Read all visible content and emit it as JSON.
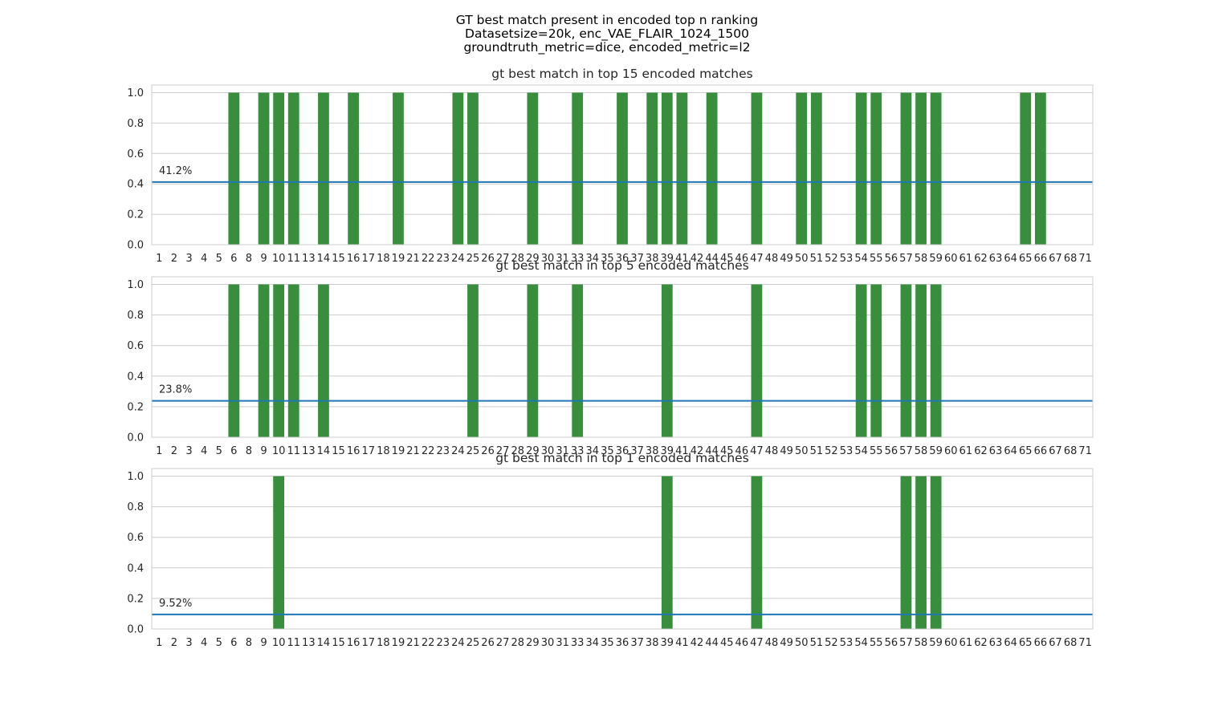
{
  "figure": {
    "title_lines": [
      "GT best match present in encoded top n ranking",
      "Datasetsize=20k, enc_VAE_FLAIR_1024_1500",
      "groundtruth_metric=dice, encoded_metric=l2"
    ]
  },
  "colors": {
    "bar": "#388e3c",
    "mean_line": "#1f77b4",
    "grid": "#cccccc",
    "spine": "#cccccc"
  },
  "chart_data": [
    {
      "type": "bar",
      "title": "gt best match in top 15 encoded matches",
      "categories": [
        "1",
        "2",
        "3",
        "4",
        "5",
        "6",
        "8",
        "9",
        "10",
        "11",
        "13",
        "14",
        "15",
        "16",
        "17",
        "18",
        "19",
        "21",
        "22",
        "23",
        "24",
        "25",
        "26",
        "27",
        "28",
        "29",
        "30",
        "31",
        "33",
        "34",
        "35",
        "36",
        "37",
        "38",
        "39",
        "41",
        "42",
        "44",
        "45",
        "46",
        "47",
        "48",
        "49",
        "50",
        "51",
        "52",
        "53",
        "54",
        "55",
        "56",
        "57",
        "58",
        "59",
        "60",
        "61",
        "62",
        "63",
        "64",
        "65",
        "66",
        "67",
        "68",
        "71"
      ],
      "values": [
        0,
        0,
        0,
        0,
        0,
        1,
        0,
        1,
        1,
        1,
        0,
        1,
        0,
        1,
        0,
        0,
        1,
        0,
        0,
        0,
        1,
        1,
        0,
        0,
        0,
        1,
        0,
        0,
        1,
        0,
        0,
        1,
        0,
        1,
        1,
        1,
        0,
        1,
        0,
        0,
        1,
        0,
        0,
        1,
        1,
        0,
        0,
        1,
        1,
        0,
        1,
        1,
        1,
        0,
        0,
        0,
        0,
        0,
        1,
        1,
        0,
        0,
        0
      ],
      "ylim": [
        0,
        1.05
      ],
      "yticks": [
        0.0,
        0.2,
        0.4,
        0.6,
        0.8,
        1.0
      ],
      "ytick_labels": [
        "0.0",
        "0.2",
        "0.4",
        "0.6",
        "0.8",
        "1.0"
      ],
      "mean_line": 0.412,
      "annotation": "41.2%",
      "grid": true
    },
    {
      "type": "bar",
      "title": "gt best match in top 5 encoded matches",
      "categories": [
        "1",
        "2",
        "3",
        "4",
        "5",
        "6",
        "8",
        "9",
        "10",
        "11",
        "13",
        "14",
        "15",
        "16",
        "17",
        "18",
        "19",
        "21",
        "22",
        "23",
        "24",
        "25",
        "26",
        "27",
        "28",
        "29",
        "30",
        "31",
        "33",
        "34",
        "35",
        "36",
        "37",
        "38",
        "39",
        "41",
        "42",
        "44",
        "45",
        "46",
        "47",
        "48",
        "49",
        "50",
        "51",
        "52",
        "53",
        "54",
        "55",
        "56",
        "57",
        "58",
        "59",
        "60",
        "61",
        "62",
        "63",
        "64",
        "65",
        "66",
        "67",
        "68",
        "71"
      ],
      "values": [
        0,
        0,
        0,
        0,
        0,
        1,
        0,
        1,
        1,
        1,
        0,
        1,
        0,
        0,
        0,
        0,
        0,
        0,
        0,
        0,
        0,
        1,
        0,
        0,
        0,
        1,
        0,
        0,
        1,
        0,
        0,
        0,
        0,
        0,
        1,
        0,
        0,
        0,
        0,
        0,
        1,
        0,
        0,
        0,
        0,
        0,
        0,
        1,
        1,
        0,
        1,
        1,
        1,
        0,
        0,
        0,
        0,
        0,
        0,
        0,
        0,
        0,
        0
      ],
      "ylim": [
        0,
        1.05
      ],
      "yticks": [
        0.0,
        0.2,
        0.4,
        0.6,
        0.8,
        1.0
      ],
      "ytick_labels": [
        "0.0",
        "0.2",
        "0.4",
        "0.6",
        "0.8",
        "1.0"
      ],
      "mean_line": 0.238,
      "annotation": "23.8%",
      "grid": true
    },
    {
      "type": "bar",
      "title": "gt best match in top 1 encoded matches",
      "categories": [
        "1",
        "2",
        "3",
        "4",
        "5",
        "6",
        "8",
        "9",
        "10",
        "11",
        "13",
        "14",
        "15",
        "16",
        "17",
        "18",
        "19",
        "21",
        "22",
        "23",
        "24",
        "25",
        "26",
        "27",
        "28",
        "29",
        "30",
        "31",
        "33",
        "34",
        "35",
        "36",
        "37",
        "38",
        "39",
        "41",
        "42",
        "44",
        "45",
        "46",
        "47",
        "48",
        "49",
        "50",
        "51",
        "52",
        "53",
        "54",
        "55",
        "56",
        "57",
        "58",
        "59",
        "60",
        "61",
        "62",
        "63",
        "64",
        "65",
        "66",
        "67",
        "68",
        "71"
      ],
      "values": [
        0,
        0,
        0,
        0,
        0,
        0,
        0,
        0,
        1,
        0,
        0,
        0,
        0,
        0,
        0,
        0,
        0,
        0,
        0,
        0,
        0,
        0,
        0,
        0,
        0,
        0,
        0,
        0,
        0,
        0,
        0,
        0,
        0,
        0,
        1,
        0,
        0,
        0,
        0,
        0,
        1,
        0,
        0,
        0,
        0,
        0,
        0,
        0,
        0,
        0,
        1,
        1,
        1,
        0,
        0,
        0,
        0,
        0,
        0,
        0,
        0,
        0,
        0
      ],
      "ylim": [
        0,
        1.05
      ],
      "yticks": [
        0.0,
        0.2,
        0.4,
        0.6,
        0.8,
        1.0
      ],
      "ytick_labels": [
        "0.0",
        "0.2",
        "0.4",
        "0.6",
        "0.8",
        "1.0"
      ],
      "mean_line": 0.0952,
      "annotation": "9.52%",
      "grid": true
    }
  ]
}
